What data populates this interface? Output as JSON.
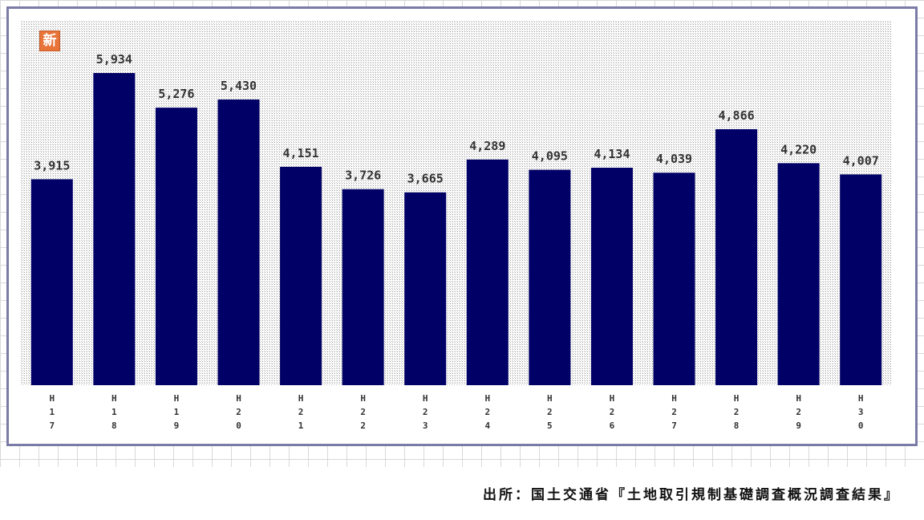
{
  "chart_data": {
    "type": "bar",
    "badge": "新",
    "categories": [
      "H17",
      "H18",
      "H19",
      "H20",
      "H21",
      "H22",
      "H23",
      "H24",
      "H25",
      "H26",
      "H27",
      "H28",
      "H29",
      "H30"
    ],
    "values": [
      3915,
      5934,
      5276,
      5430,
      4151,
      3726,
      3665,
      4289,
      4095,
      4134,
      4039,
      4866,
      4220,
      4007
    ],
    "value_labels": [
      "3,915",
      "5,934",
      "5,276",
      "5,430",
      "4,151",
      "3,726",
      "3,665",
      "4,289",
      "4,095",
      "4,134",
      "4,039",
      "4,866",
      "4,220",
      "4,007"
    ],
    "color": "#000066",
    "source": "出所：国土交通省『土地取引規制基礎調査概況調査結果』"
  }
}
